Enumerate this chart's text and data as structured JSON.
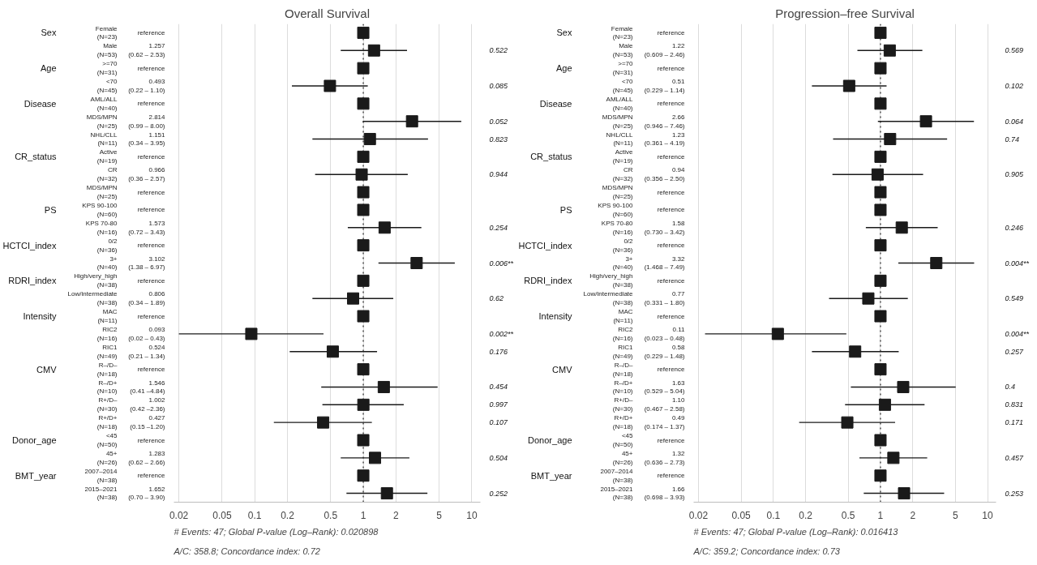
{
  "chart_data": [
    {
      "type": "scatter",
      "orientation": "horizontal",
      "title": "Overall Survival",
      "log": "x",
      "marker": "square",
      "color": "#1a1a1a",
      "grid": "x",
      "xlim": [
        0.018,
        12
      ],
      "xticks": [
        0.02,
        0.05,
        0.1,
        0.2,
        0.5,
        1,
        2,
        5,
        10
      ],
      "ref_lines": [
        {
          "axis": "x",
          "value": 1,
          "line_style": "dotted"
        }
      ],
      "categories": [
        "Female\n(N=23)",
        "Male\n(N=53)",
        ">=70\n(N=31)",
        "<70\n(N=45)",
        "AML/ALL\n(N=40)",
        "MDS/MPN\n(N=25)",
        "NHL/CLL\n(N=11)",
        "Active\n(N=19)",
        "CR\n(N=32)",
        "MDS/MPN\n(N=25)",
        "KPS 90-100\n(N=60)",
        "KPS 70-80\n(N=16)",
        "0/2\n(N=36)",
        "3+\n(N=40)",
        "High/very_high\n(N=38)",
        "Low/intermediate\n(N=38)",
        "MAC\n(N=11)",
        "RIC2\n(N=16)",
        "RIC1\n(N=49)",
        "R–/D–\n(N=18)",
        "R–/D+\n(N=10)",
        "R+/D–\n(N=30)",
        "R+/D+\n(N=18)",
        "<45\n(N=50)",
        "45+\n(N=26)",
        "2007–2014\n(N=38)",
        "2015–2021\n(N=38)"
      ],
      "y2_categories": [
        "Sex",
        null,
        "Age",
        null,
        "Disease",
        null,
        null,
        "CR_status",
        null,
        null,
        "PS",
        null,
        "HCTCI_index",
        null,
        "RDRI_index",
        null,
        "Intensity",
        null,
        null,
        "CMV",
        null,
        null,
        null,
        "Donor_age",
        null,
        "BMT_year",
        null
      ],
      "values": [
        1,
        1.257,
        1,
        0.493,
        1,
        2.814,
        1.151,
        1,
        0.966,
        1,
        1,
        1.573,
        1,
        3.102,
        1,
        0.806,
        1,
        0.093,
        0.524,
        1,
        1.546,
        1.002,
        0.427,
        1,
        1.283,
        1,
        1.652
      ],
      "errors": [
        null,
        [
          0.62,
          2.53
        ],
        null,
        [
          0.22,
          1.1
        ],
        null,
        [
          0.99,
          8.0
        ],
        [
          0.34,
          3.95
        ],
        null,
        [
          0.36,
          2.57
        ],
        null,
        null,
        [
          0.72,
          3.43
        ],
        null,
        [
          1.38,
          6.97
        ],
        null,
        [
          0.34,
          1.89
        ],
        null,
        [
          0.02,
          0.43
        ],
        [
          0.21,
          1.34
        ],
        null,
        [
          0.41,
          4.84
        ],
        [
          0.42,
          2.36
        ],
        [
          0.15,
          1.2
        ],
        null,
        [
          0.62,
          2.66
        ],
        null,
        [
          0.7,
          3.9
        ]
      ],
      "value_labels": [
        "reference",
        "1.257\n(0.62 – 2.53)",
        "reference",
        "0.493\n(0.22 – 1.10)",
        "reference",
        "2.814\n(0.99 – 8.00)",
        "1.151\n(0.34 – 3.95)",
        "reference",
        "0.966\n(0.36 – 2.57)",
        "reference",
        "reference",
        "1.573\n(0.72 – 3.43)",
        "reference",
        "3.102\n(1.38 – 6.97)",
        "reference",
        "0.806\n(0.34 – 1.89)",
        "reference",
        "0.093\n(0.02 – 0.43)",
        "0.524\n(0.21 – 1.34)",
        "reference",
        "1.546\n(0.41 –4.84)",
        "1.002\n(0.42 –2.36)",
        "0.427\n(0.15 –1.20)",
        "reference",
        "1.283\n(0.62 – 2.66)",
        "reference",
        "1.652\n(0.70 – 3.90)"
      ],
      "annotations": [
        "0.522",
        "0.085",
        "0.052",
        "0.823",
        "0.944",
        "0.254",
        "0.006**",
        "0.62",
        "0.002**",
        "0.176",
        "0.454",
        "0.997",
        "0.107",
        "0.504",
        "0.252",
        "# Events: 47; Global P-value (Log–Rank): 0.020898",
        "A/C: 358.8; Concordance index: 0.72"
      ]
    },
    {
      "type": "scatter",
      "orientation": "horizontal",
      "title": "Progression–free Survival",
      "log": "x",
      "marker": "square",
      "color": "#1a1a1a",
      "grid": "x",
      "xlim": [
        0.018,
        12
      ],
      "xticks": [
        0.02,
        0.05,
        0.1,
        0.2,
        0.5,
        1,
        2,
        5,
        10
      ],
      "ref_lines": [
        {
          "axis": "x",
          "value": 1,
          "line_style": "dotted"
        }
      ],
      "categories": [
        "Female\n(N=23)",
        "Male\n(N=53)",
        ">=70\n(N=31)",
        "<70\n(N=45)",
        "AML/ALL\n(N=40)",
        "MDS/MPN\n(N=25)",
        "NHL/CLL\n(N=11)",
        "Active\n(N=19)",
        "CR\n(N=32)",
        "MDS/MPN\n(N=25)",
        "KPS 90-100\n(N=60)",
        "KPS 70-80\n(N=16)",
        "0/2\n(N=36)",
        "3+\n(N=40)",
        "High/very_high\n(N=38)",
        "Low/intermediate\n(N=38)",
        "MAC\n(N=11)",
        "RIC2\n(N=16)",
        "RIC1\n(N=49)",
        "R–/D–\n(N=18)",
        "R–/D+\n(N=10)",
        "R+/D–\n(N=30)",
        "R+/D+\n(N=18)",
        "<45\n(N=50)",
        "45+\n(N=26)",
        "2007–2014\n(N=38)",
        "2015–2021\n(N=38)"
      ],
      "y2_categories": [
        "Sex",
        null,
        "Age",
        null,
        "Disease",
        null,
        null,
        "CR_status",
        null,
        null,
        "PS",
        null,
        "HCTCI_index",
        null,
        "RDRI_index",
        null,
        "Intensity",
        null,
        null,
        "CMV",
        null,
        null,
        null,
        "Donor_age",
        null,
        "BMT_year",
        null
      ],
      "values": [
        1,
        1.22,
        1,
        0.51,
        1,
        2.66,
        1.23,
        1,
        0.94,
        1,
        1,
        1.58,
        1,
        3.32,
        1,
        0.77,
        1,
        0.11,
        0.58,
        1,
        1.63,
        1.1,
        0.49,
        1,
        1.32,
        1,
        1.66
      ],
      "errors": [
        null,
        [
          0.609,
          2.46
        ],
        null,
        [
          0.229,
          1.14
        ],
        null,
        [
          0.946,
          7.46
        ],
        [
          0.361,
          4.19
        ],
        null,
        [
          0.356,
          2.5
        ],
        null,
        null,
        [
          0.73,
          3.42
        ],
        null,
        [
          1.468,
          7.49
        ],
        null,
        [
          0.331,
          1.8
        ],
        null,
        [
          0.023,
          0.48
        ],
        [
          0.229,
          1.48
        ],
        null,
        [
          0.529,
          5.04
        ],
        [
          0.467,
          2.58
        ],
        [
          0.174,
          1.37
        ],
        null,
        [
          0.636,
          2.73
        ],
        null,
        [
          0.698,
          3.93
        ]
      ],
      "value_labels": [
        "reference",
        "1.22\n(0.609 – 2.46)",
        "reference",
        "0.51\n(0.229 – 1.14)",
        "reference",
        "2.66\n(0.946 – 7.46)",
        "1.23\n(0.361 – 4.19)",
        "reference",
        "0.94\n(0.356 – 2.50)",
        "reference",
        "reference",
        "1.58\n(0.730 – 3.42)",
        "reference",
        "3.32\n(1.468 – 7.49)",
        "reference",
        "0.77\n(0.331 – 1.80)",
        "reference",
        "0.11\n(0.023 – 0.48)",
        "0.58\n(0.229 – 1.48)",
        "reference",
        "1.63\n(0.529 – 5.04)",
        "1.10\n(0.467 – 2.58)",
        "0.49\n(0.174 – 1.37)",
        "reference",
        "1.32\n(0.636 – 2.73)",
        "reference",
        "1.66\n(0.698 – 3.93)"
      ],
      "annotations": [
        "0.569",
        "0.102",
        "0.064",
        "0.74",
        "0.905",
        "0.246",
        "0.004**",
        "0.549",
        "0.004**",
        "0.257",
        "0.4",
        "0.831",
        "0.171",
        "0.457",
        "0.253",
        "# Events: 47; Global P-value (Log–Rank): 0.016413",
        "A/C: 359.2; Concordance index: 0.73"
      ]
    }
  ]
}
